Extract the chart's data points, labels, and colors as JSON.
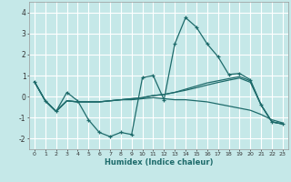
{
  "title": "",
  "xlabel": "Humidex (Indice chaleur)",
  "background_color": "#c5e8e8",
  "grid_color": "#ffffff",
  "line_color": "#1e6b6b",
  "x_ticks": [
    0,
    1,
    2,
    3,
    4,
    5,
    6,
    7,
    8,
    9,
    10,
    11,
    12,
    13,
    14,
    15,
    16,
    17,
    18,
    19,
    20,
    21,
    22,
    23
  ],
  "xlim": [
    -0.5,
    23.5
  ],
  "ylim": [
    -2.5,
    4.5
  ],
  "yticks": [
    -2,
    -1,
    0,
    1,
    2,
    3,
    4
  ],
  "series": [
    [
      0.7,
      -0.2,
      -0.7,
      0.2,
      -0.2,
      -1.1,
      -1.7,
      -1.9,
      -1.7,
      -1.8,
      0.9,
      1.0,
      -0.15,
      2.5,
      3.75,
      3.3,
      2.5,
      1.9,
      1.05,
      1.1,
      0.8,
      -0.4,
      -1.2,
      -1.3
    ],
    [
      0.7,
      -0.2,
      -0.7,
      -0.2,
      -0.25,
      -0.25,
      -0.25,
      -0.2,
      -0.15,
      -0.15,
      -0.1,
      -0.05,
      -0.1,
      -0.15,
      -0.15,
      -0.2,
      -0.25,
      -0.35,
      -0.45,
      -0.55,
      -0.65,
      -0.85,
      -1.1,
      -1.25
    ],
    [
      0.7,
      -0.2,
      -0.7,
      -0.2,
      -0.25,
      -0.25,
      -0.25,
      -0.2,
      -0.15,
      -0.1,
      -0.05,
      0.05,
      0.1,
      0.2,
      0.35,
      0.5,
      0.65,
      0.75,
      0.85,
      0.95,
      0.75,
      -0.4,
      -1.2,
      -1.3
    ],
    [
      0.7,
      -0.2,
      -0.7,
      -0.2,
      -0.25,
      -0.25,
      -0.25,
      -0.2,
      -0.15,
      -0.1,
      -0.05,
      0.05,
      0.1,
      0.2,
      0.3,
      0.42,
      0.55,
      0.67,
      0.78,
      0.88,
      0.68,
      -0.4,
      -1.2,
      -1.3
    ]
  ]
}
